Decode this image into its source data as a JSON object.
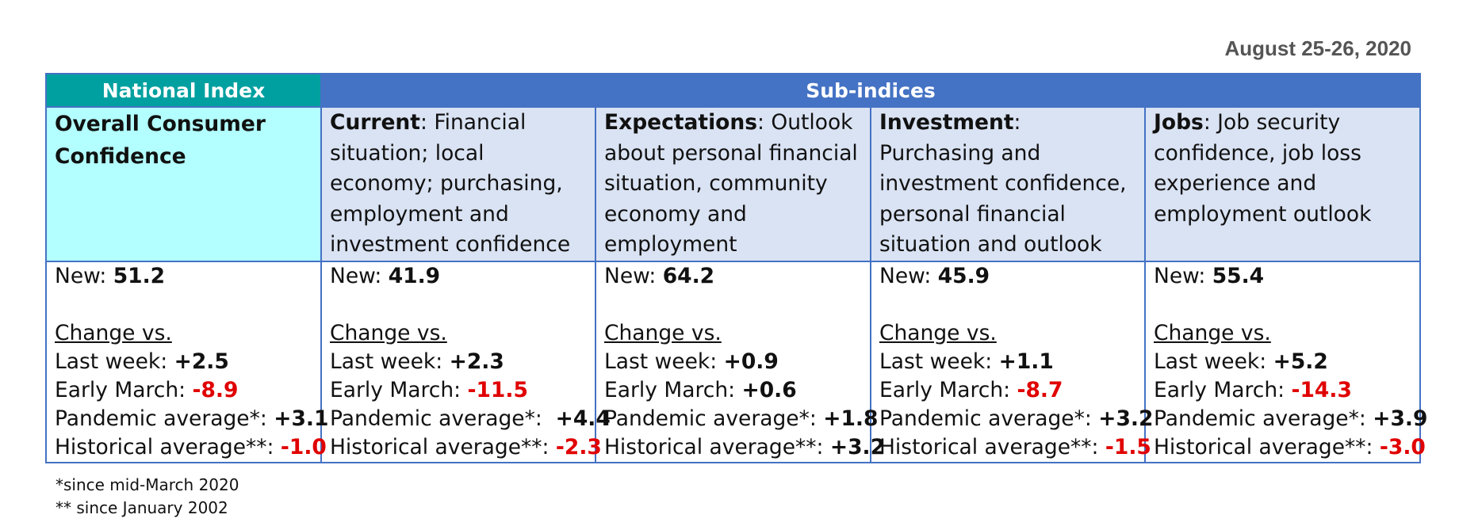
{
  "date": "August 25-26, 2020",
  "headers": {
    "national": "National Index",
    "sub": "Sub-indices"
  },
  "columns": [
    {
      "title": "Overall Consumer Confidence",
      "desc": "",
      "new_label": "New:",
      "new_value": "51.2",
      "change_label": "Change vs.",
      "last_week_label": "Last week:",
      "last_week": "+2.5",
      "early_march_label": "Early March:",
      "early_march": "-8.9",
      "pandemic_label": "Pandemic average*:",
      "pandemic": "+3.1",
      "historical_label": "Historical average**:",
      "historical": "-1.0"
    },
    {
      "title": "Current",
      "desc": ": Financial situation; local economy; purchasing, employment and investment confidence",
      "new_label": "New:",
      "new_value": "41.9",
      "change_label": "Change vs.",
      "last_week_label": "Last week:",
      "last_week": "+2.3",
      "early_march_label": "Early March:",
      "early_march": "-11.5",
      "pandemic_label": "Pandemic average*:",
      "pandemic": "+4.4",
      "historical_label": "Historical average**:",
      "historical": "-2.3"
    },
    {
      "title": "Expectations",
      "desc": ": Outlook about personal financial situation, community economy and employment",
      "new_label": "New:",
      "new_value": "64.2",
      "change_label": "Change vs.",
      "last_week_label": "Last week:",
      "last_week": "+0.9",
      "early_march_label": "Early March:",
      "early_march": "+0.6",
      "pandemic_label": "Pandemic average*:",
      "pandemic": "+1.8",
      "historical_label": "Historical average**:",
      "historical": "+3.2"
    },
    {
      "title": "Investment",
      "desc": ": Purchasing and investment confidence, personal financial situation and outlook",
      "new_label": "New:",
      "new_value": "45.9",
      "change_label": "Change vs.",
      "last_week_label": "Last week:",
      "last_week": "+1.1",
      "early_march_label": "Early March:",
      "early_march": "-8.7",
      "pandemic_label": "Pandemic average*:",
      "pandemic": "+3.2",
      "historical_label": "Historical average**:",
      "historical": "-1.5"
    },
    {
      "title": "Jobs",
      "desc": ": Job security confidence, job loss experience and employment outlook",
      "new_label": "New:",
      "new_value": "55.4",
      "change_label": "Change vs.",
      "last_week_label": "Last week:",
      "last_week": "+5.2",
      "early_march_label": "Early March:",
      "early_march": "-14.3",
      "pandemic_label": "Pandemic average*:",
      "pandemic": "+3.9",
      "historical_label": "Historical average**:",
      "historical": "-3.0"
    }
  ],
  "footnotes": [
    "*since mid-March 2020",
    "** since January 2002"
  ],
  "colors": {
    "national_header": "#00a0a0",
    "sub_header": "#4472c4",
    "national_desc_bg": "#b3ffff",
    "sub_desc_bg": "#dae3f3",
    "negative": "#e00000"
  }
}
